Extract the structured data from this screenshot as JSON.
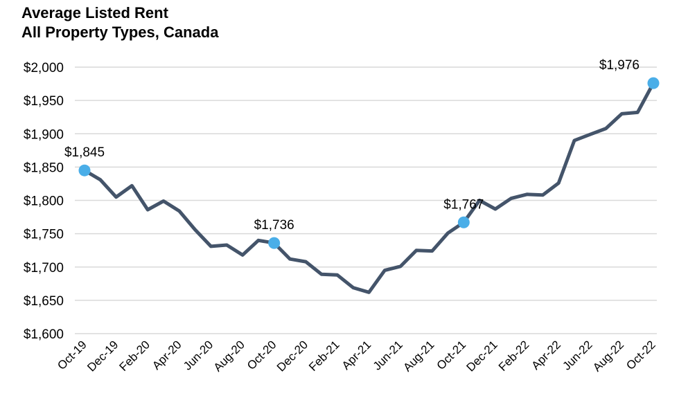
{
  "chart_data": {
    "type": "line",
    "title": "Average Listed Rent",
    "subtitle": "All Property Types, Canada",
    "xlabel": "",
    "ylabel": "",
    "ylim": [
      1600,
      2000
    ],
    "ytick_values": [
      1600,
      1650,
      1700,
      1750,
      1800,
      1850,
      1900,
      1950,
      2000
    ],
    "ytick_labels": [
      "$1,600",
      "$1,650",
      "$1,700",
      "$1,750",
      "$1,800",
      "$1,850",
      "$1,900",
      "$1,950",
      "$2,000"
    ],
    "x": [
      "Oct-19",
      "Nov-19",
      "Dec-19",
      "Jan-20",
      "Feb-20",
      "Mar-20",
      "Apr-20",
      "May-20",
      "Jun-20",
      "Jul-20",
      "Aug-20",
      "Sep-20",
      "Oct-20",
      "Nov-20",
      "Dec-20",
      "Jan-21",
      "Feb-21",
      "Mar-21",
      "Apr-21",
      "May-21",
      "Jun-21",
      "Jul-21",
      "Aug-21",
      "Sep-21",
      "Oct-21",
      "Nov-21",
      "Dec-21",
      "Jan-22",
      "Feb-22",
      "Mar-22",
      "Apr-22",
      "May-22",
      "Jun-22",
      "Jul-22",
      "Aug-22",
      "Sep-22",
      "Oct-22"
    ],
    "xtick_labels": [
      "Oct-19",
      "Dec-19",
      "Feb-20",
      "Apr-20",
      "Jun-20",
      "Aug-20",
      "Oct-20",
      "Dec-20",
      "Feb-21",
      "Apr-21",
      "Jun-21",
      "Aug-21",
      "Oct-21",
      "Dec-21",
      "Feb-22",
      "Apr-22",
      "Jun-22",
      "Aug-22",
      "Oct-22"
    ],
    "series": [
      {
        "values": [
          1845,
          1831,
          1805,
          1822,
          1786,
          1799,
          1784,
          1756,
          1731,
          1733,
          1718,
          1740,
          1736,
          1712,
          1708,
          1689,
          1688,
          1669,
          1662,
          1695,
          1701,
          1725,
          1724,
          1751,
          1767,
          1800,
          1787,
          1803,
          1809,
          1808,
          1826,
          1890,
          1899,
          1908,
          1930,
          1932,
          1976
        ]
      }
    ],
    "annotations": [
      {
        "x": "Oct-19",
        "value": 1845,
        "label": "$1,845"
      },
      {
        "x": "Oct-20",
        "value": 1736,
        "label": "$1,736"
      },
      {
        "x": "Oct-21",
        "value": 1767,
        "label": "$1,767"
      },
      {
        "x": "Oct-22",
        "value": 1976,
        "label": "$1,976"
      }
    ],
    "grid": true,
    "colors": {
      "line": "#44546a",
      "marker": "#4aaee8",
      "grid": "#d9d9d9"
    }
  }
}
